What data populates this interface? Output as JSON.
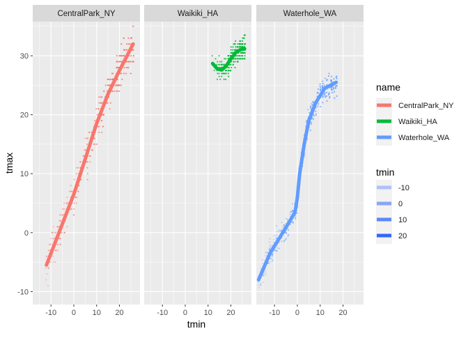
{
  "chart_data": {
    "type": "scatter",
    "layout": "faceted",
    "facets": [
      "CentralPark_NY",
      "Waikiki_HA",
      "Waterhole_WA"
    ],
    "xlabel": "tmin",
    "ylabel": "tmax",
    "xlim": [
      -18,
      29
    ],
    "ylim": [
      -12.2,
      35.8
    ],
    "x_ticks": [
      -10,
      0,
      10,
      20
    ],
    "y_ticks": [
      -10,
      0,
      10,
      20,
      30
    ],
    "grid": true,
    "legend_position": "right",
    "color_legend": {
      "title": "name",
      "entries": [
        {
          "label": "CentralPark_NY",
          "color": "#F8766D"
        },
        {
          "label": "Waikiki_HA",
          "color": "#00BA38"
        },
        {
          "label": "Waterhole_WA",
          "color": "#619CFF"
        }
      ]
    },
    "alpha_legend": {
      "title": "tmin",
      "entries": [
        "-10",
        "0",
        "10",
        "20"
      ],
      "color": "#3366FF"
    },
    "series": [
      {
        "name": "CentralPark_NY",
        "color": "#F8766D",
        "tmin_range": [
          -12,
          26
        ],
        "scatter_summary": {
          "slope": 1.0,
          "intercept": 6.5,
          "spread": 2.5
        },
        "smooth": [
          [
            -12,
            -5.5
          ],
          [
            -5,
            1.5
          ],
          [
            0,
            6.5
          ],
          [
            5,
            12.5
          ],
          [
            10,
            18.5
          ],
          [
            15,
            23.5
          ],
          [
            20,
            27.5
          ],
          [
            26,
            32.0
          ]
        ]
      },
      {
        "name": "Waikiki_HA",
        "color": "#00BA38",
        "tmin_range": [
          12,
          26
        ],
        "scatter_summary": {
          "band_center": 29.0,
          "spread": 2.2
        },
        "smooth": [
          [
            12,
            28.7
          ],
          [
            14,
            27.8
          ],
          [
            16,
            27.6
          ],
          [
            18,
            28.3
          ],
          [
            20,
            29.5
          ],
          [
            22,
            30.5
          ],
          [
            24,
            31.0
          ],
          [
            26,
            31.2
          ]
        ]
      },
      {
        "name": "Waterhole_WA",
        "color": "#619CFF",
        "tmin_range": [
          -17,
          17
        ],
        "scatter_summary": {
          "spread": 1.8
        },
        "smooth": [
          [
            -17,
            -8.0
          ],
          [
            -12,
            -3.5
          ],
          [
            -8,
            -1.0
          ],
          [
            -4,
            1.5
          ],
          [
            -1,
            3.5
          ],
          [
            0,
            6.0
          ],
          [
            1,
            10.0
          ],
          [
            3,
            15.0
          ],
          [
            5,
            19.0
          ],
          [
            8,
            22.0
          ],
          [
            12,
            24.5
          ],
          [
            17,
            25.5
          ]
        ]
      }
    ]
  }
}
